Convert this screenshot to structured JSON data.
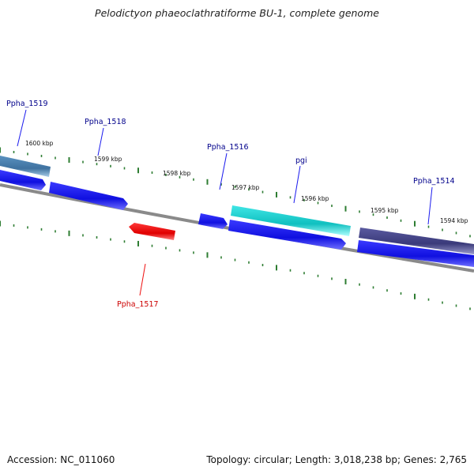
{
  "title": "Pelodictyon phaeoclathratiforme BU-1, complete genome",
  "footer": {
    "accession": "Accession: NC_011060",
    "info": "Topology: circular; Length: 3,018,238 bp; Genes: 2,765"
  },
  "colors": {
    "backbone": "#8a8a8a",
    "tick": "#2e7d32",
    "forward_gene": "#1a1aee",
    "reverse_gene": "#ee1111",
    "pgi": "#1ecfcf",
    "ppha_1514": "#4a4a8e",
    "ppha_1519": "#4f82b0",
    "label_forward": "#00008b",
    "label_reverse": "#cc0000"
  },
  "kbp_markers": [
    {
      "label": "1600 kbp"
    },
    {
      "label": "1599 kbp"
    },
    {
      "label": "1598 kbp"
    },
    {
      "label": "1597 kbp"
    },
    {
      "label": "1596 kbp"
    },
    {
      "label": "1595 kbp"
    },
    {
      "label": "1594 kbp"
    }
  ],
  "genes": [
    {
      "name": "Ppha_1519",
      "strand": "+",
      "track": "outer"
    },
    {
      "name": "Ppha_1518",
      "strand": "+",
      "track": "cds"
    },
    {
      "name": "Ppha_1517",
      "strand": "-",
      "track": "reverse"
    },
    {
      "name": "Ppha_1516",
      "strand": "+",
      "track": "cds"
    },
    {
      "name": "pgi",
      "strand": "+",
      "track": "outer"
    },
    {
      "name": "Ppha_1514",
      "strand": "+",
      "track": "outer"
    }
  ]
}
